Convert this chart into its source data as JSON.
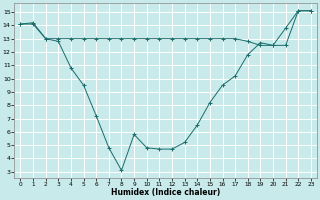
{
  "title": "",
  "xlabel": "Humidex (Indice chaleur)",
  "bg_color": "#c8eaea",
  "grid_color": "#ffffff",
  "line_color": "#1a6b6b",
  "x_ticks": [
    0,
    1,
    2,
    3,
    4,
    5,
    6,
    7,
    8,
    9,
    10,
    11,
    12,
    13,
    14,
    15,
    16,
    17,
    18,
    19,
    20,
    21,
    22,
    23
  ],
  "y_ticks": [
    3,
    4,
    5,
    6,
    7,
    8,
    9,
    10,
    11,
    12,
    13,
    14,
    15
  ],
  "xlim": [
    -0.5,
    23.5
  ],
  "ylim": [
    2.5,
    15.7
  ],
  "line1_x": [
    0,
    1,
    2,
    3,
    4,
    5,
    6,
    7,
    8,
    9,
    10,
    11,
    12,
    13,
    14,
    15,
    16,
    17,
    18,
    19,
    20,
    21,
    22,
    23
  ],
  "line1_y": [
    14.1,
    14.2,
    13.0,
    12.8,
    10.8,
    9.5,
    7.2,
    4.8,
    3.1,
    5.8,
    4.8,
    4.7,
    4.7,
    5.2,
    6.5,
    8.2,
    9.5,
    10.2,
    11.8,
    12.7,
    12.5,
    13.8,
    15.1,
    15.1
  ],
  "line2_x": [
    0,
    1,
    2,
    3,
    4,
    5,
    6,
    7,
    8,
    9,
    10,
    11,
    12,
    13,
    14,
    15,
    16,
    17,
    18,
    19,
    20,
    21,
    22,
    23
  ],
  "line2_y": [
    14.1,
    14.1,
    13.0,
    13.0,
    13.0,
    13.0,
    13.0,
    13.0,
    13.0,
    13.0,
    13.0,
    13.0,
    13.0,
    13.0,
    13.0,
    13.0,
    13.0,
    13.0,
    12.8,
    12.5,
    12.5,
    12.5,
    15.1,
    15.1
  ]
}
